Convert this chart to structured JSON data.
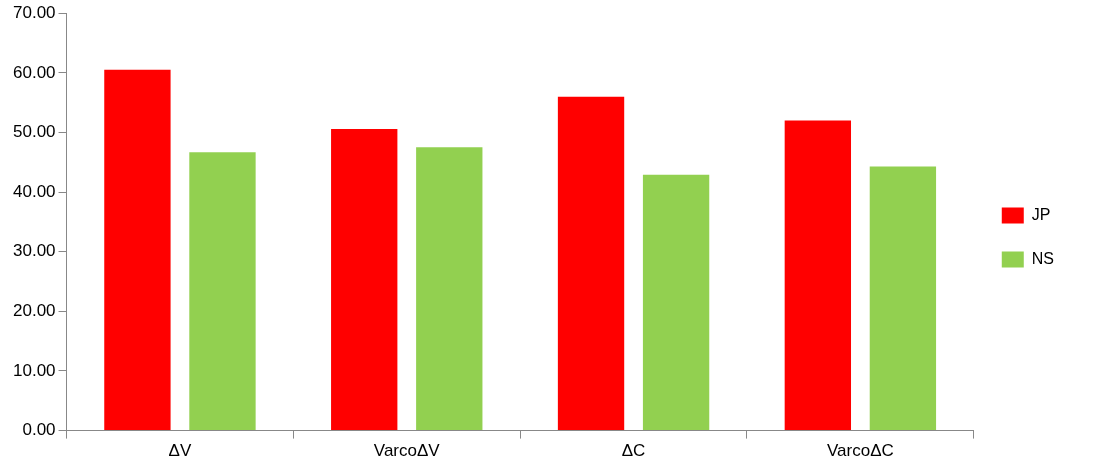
{
  "chart_data": {
    "type": "bar",
    "categories": [
      "ΔV",
      "VarcoΔV",
      "ΔC",
      "VarcoΔC"
    ],
    "series": [
      {
        "name": "JP",
        "color": "#ff0000",
        "values": [
          60.5,
          50.6,
          56.0,
          52.0
        ]
      },
      {
        "name": "NS",
        "color": "#92d050",
        "values": [
          46.7,
          47.5,
          42.9,
          44.3
        ]
      }
    ],
    "ylim": [
      0,
      70
    ],
    "yticks": [
      {
        "value": 0,
        "label": "0.00"
      },
      {
        "value": 10,
        "label": "10.00"
      },
      {
        "value": 20,
        "label": "20.00"
      },
      {
        "value": 30,
        "label": "30.00"
      },
      {
        "value": 40,
        "label": "40.00"
      },
      {
        "value": 50,
        "label": "50.00"
      },
      {
        "value": 60,
        "label": "60.00"
      },
      {
        "value": 70,
        "label": "70.00"
      }
    ],
    "grid": false,
    "legend": "right"
  }
}
